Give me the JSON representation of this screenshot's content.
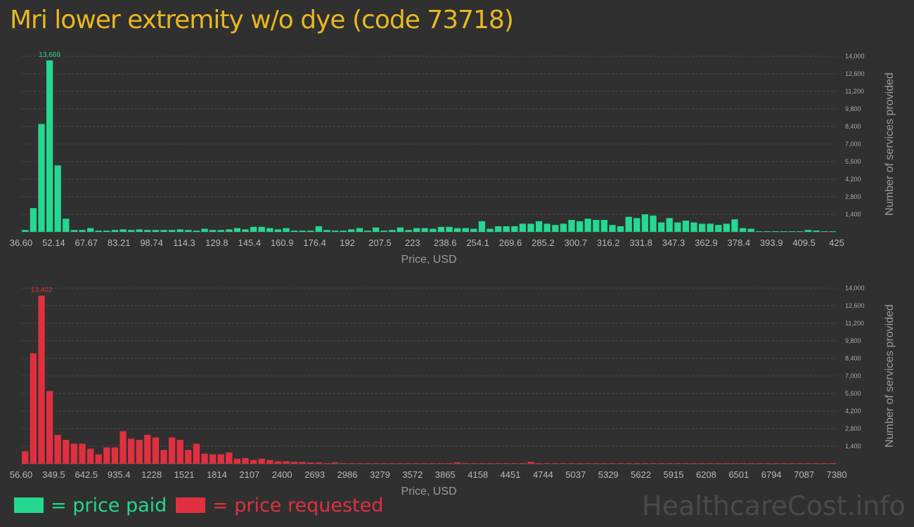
{
  "title": "Mri lower extremity w/o dye (code 73718)",
  "colors": {
    "background": "#303030",
    "title": "#e8b820",
    "paid": "#24d890",
    "requested": "#e03040",
    "grid": "#4a4a4a",
    "watermark": "#4a4a4a"
  },
  "legend": {
    "paid_label": "= price paid",
    "requested_label": "= price requested"
  },
  "watermark": "HealthcareCost.info",
  "chart_data": [
    {
      "type": "bar",
      "name": "price paid",
      "xlabel": "Price, USD",
      "ylabel": "Number of services provided",
      "ylim": [
        0,
        14000
      ],
      "yticks": [
        1400,
        2800,
        4200,
        5600,
        7000,
        8400,
        9800,
        11200,
        12600,
        14000
      ],
      "ytick_labels": [
        "1,400",
        "2,800",
        "4,200",
        "5,600",
        "7,000",
        "8,400",
        "9,800",
        "11,200",
        "12,600",
        "14,000"
      ],
      "xticks": [
        "36.60",
        "52.14",
        "67.67",
        "83.21",
        "98.74",
        "114.3",
        "129.8",
        "145.4",
        "160.9",
        "176.4",
        "192",
        "207.5",
        "223",
        "238.6",
        "254.1",
        "269.6",
        "285.2",
        "300.7",
        "316.2",
        "331.8",
        "347.3",
        "362.9",
        "378.4",
        "393.9",
        "409.5",
        "425"
      ],
      "x_range": [
        36.6,
        425
      ],
      "peak_label": "13,669",
      "values": [
        150,
        1900,
        8600,
        13669,
        5300,
        1050,
        150,
        150,
        300,
        100,
        100,
        150,
        200,
        150,
        200,
        150,
        150,
        150,
        150,
        200,
        150,
        100,
        250,
        150,
        150,
        200,
        300,
        200,
        400,
        400,
        300,
        200,
        300,
        100,
        100,
        100,
        450,
        150,
        100,
        100,
        200,
        300,
        100,
        350,
        100,
        150,
        350,
        150,
        300,
        300,
        250,
        400,
        400,
        300,
        300,
        250,
        850,
        250,
        450,
        450,
        450,
        650,
        650,
        850,
        650,
        550,
        650,
        950,
        850,
        1050,
        950,
        950,
        550,
        450,
        1200,
        1100,
        1400,
        1300,
        750,
        1100,
        750,
        900,
        750,
        650,
        650,
        550,
        650,
        1000,
        300,
        250,
        50,
        50,
        50,
        50,
        50,
        50,
        150,
        100,
        50,
        50
      ]
    },
    {
      "type": "bar",
      "name": "price requested",
      "xlabel": "Price, USD",
      "ylabel": "Number of services provided",
      "ylim": [
        0,
        14000
      ],
      "yticks": [
        1400,
        2800,
        4200,
        5600,
        7000,
        8400,
        9800,
        11200,
        12600,
        14000
      ],
      "ytick_labels": [
        "1,400",
        "2,800",
        "4,200",
        "5,600",
        "7,000",
        "8,400",
        "9,800",
        "11,200",
        "12,600",
        "14,000"
      ],
      "xticks": [
        "56.60",
        "349.5",
        "642.5",
        "935.4",
        "1228",
        "1521",
        "1814",
        "2107",
        "2400",
        "2693",
        "2986",
        "3279",
        "3572",
        "3865",
        "4158",
        "4451",
        "4744",
        "5037",
        "5329",
        "5622",
        "5915",
        "6208",
        "6501",
        "6794",
        "7087",
        "7380"
      ],
      "x_range": [
        56.6,
        7380
      ],
      "peak_label": "13,402",
      "values": [
        1000,
        8800,
        13402,
        5800,
        2300,
        1900,
        1600,
        1600,
        1200,
        750,
        1300,
        1300,
        2600,
        2000,
        1900,
        2300,
        2100,
        1100,
        2100,
        1900,
        1100,
        1600,
        800,
        750,
        750,
        900,
        400,
        450,
        300,
        400,
        300,
        200,
        200,
        150,
        150,
        100,
        100,
        50,
        100,
        50,
        50,
        50,
        50,
        50,
        50,
        50,
        50,
        50,
        50,
        50,
        50,
        50,
        50,
        100,
        50,
        50,
        50,
        50,
        50,
        50,
        50,
        50,
        150,
        50,
        50,
        50,
        50,
        50,
        50,
        50,
        50,
        50,
        50,
        50,
        50,
        50,
        50,
        50,
        50,
        50,
        50,
        50,
        50,
        50,
        50,
        50,
        50,
        50,
        50,
        50,
        50,
        50,
        50,
        50,
        50,
        50,
        50,
        50,
        50,
        50
      ]
    }
  ]
}
